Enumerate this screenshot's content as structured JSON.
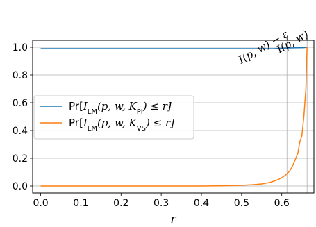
{
  "chart_data": {
    "type": "line",
    "xlabel": "r",
    "ylabel": "",
    "xlim": [
      -0.02,
      0.68
    ],
    "ylim": [
      -0.05,
      1.05
    ],
    "x_ticks": [
      0.0,
      0.1,
      0.2,
      0.3,
      0.4,
      0.5,
      0.6
    ],
    "x_tick_labels": [
      "0.0",
      "0.1",
      "0.2",
      "0.3",
      "0.4",
      "0.5",
      "0.6"
    ],
    "y_ticks": [
      0.0,
      0.2,
      0.4,
      0.6,
      0.8,
      1.0
    ],
    "y_tick_labels": [
      "0.0",
      "0.2",
      "0.4",
      "0.6",
      "0.8",
      "1.0"
    ],
    "grid": "horizontal",
    "legend_position": "center-left",
    "reference_lines": [
      {
        "x": 0.613,
        "label": "I(p, w) − ε"
      },
      {
        "x": 0.663,
        "label": "I(p, w)"
      }
    ],
    "series": [
      {
        "name": "Pr[I_LM(p, w, K_PI) ≤ r]",
        "color": "#1f77b4",
        "x": [
          0.0,
          0.1,
          0.2,
          0.3,
          0.4,
          0.5,
          0.55,
          0.58,
          0.6,
          0.62,
          0.64,
          0.655,
          0.663
        ],
        "y": [
          0.99,
          0.99,
          0.99,
          0.99,
          0.99,
          0.99,
          0.99,
          0.99,
          0.993,
          0.995,
          0.996,
          0.997,
          1.0
        ]
      },
      {
        "name": "Pr[I_LM(p, w, K_VS) ≤ r]",
        "color": "#ff7f0e",
        "x": [
          0.0,
          0.1,
          0.2,
          0.3,
          0.4,
          0.45,
          0.5,
          0.53,
          0.55,
          0.57,
          0.58,
          0.59,
          0.6,
          0.61,
          0.62,
          0.625,
          0.63,
          0.635,
          0.64,
          0.645,
          0.65,
          0.655,
          0.66,
          0.663
        ],
        "y": [
          0.0,
          0.0,
          0.0,
          0.0,
          0.0,
          0.002,
          0.005,
          0.01,
          0.015,
          0.025,
          0.035,
          0.045,
          0.06,
          0.08,
          0.11,
          0.135,
          0.165,
          0.2,
          0.235,
          0.32,
          0.36,
          0.5,
          0.7,
          1.0
        ]
      }
    ],
    "legend": [
      {
        "prefix": "Pr[",
        "var": "I",
        "sub1": "LM",
        "mid": "(p, w, ",
        "var2": "K",
        "sub2": "PI",
        "suffix": ") ≤ r]"
      },
      {
        "prefix": "Pr[",
        "var": "I",
        "sub1": "LM",
        "mid": "(p, w, ",
        "var2": "K",
        "sub2": "VS",
        "suffix": ") ≤ r]"
      }
    ]
  }
}
